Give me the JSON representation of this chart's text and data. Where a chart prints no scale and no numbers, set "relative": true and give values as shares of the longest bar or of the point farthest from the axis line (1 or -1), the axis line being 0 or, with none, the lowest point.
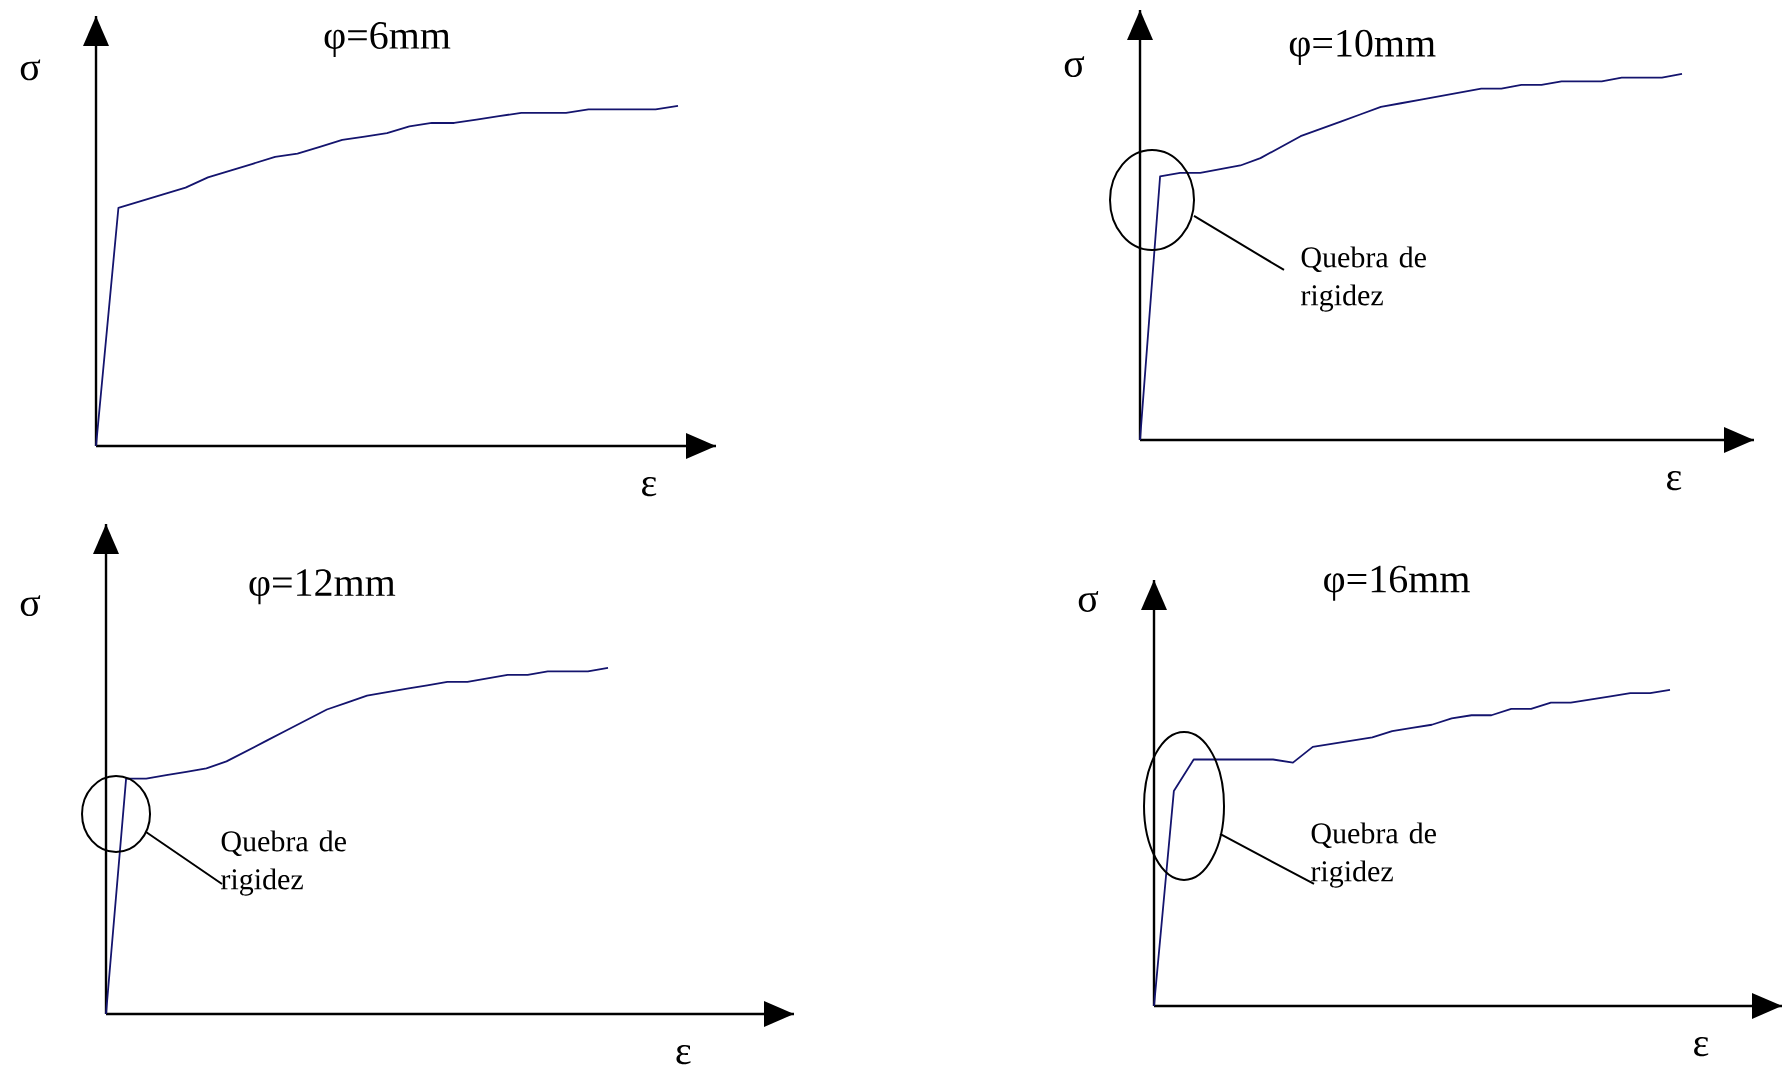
{
  "chart_data": [
    {
      "type": "line",
      "title": "φ=6mm",
      "xlabel": "ε",
      "ylabel": "σ",
      "relative": true,
      "categories": [
        null,
        null,
        null,
        null,
        null,
        null,
        null,
        null,
        null,
        null,
        null,
        null,
        null,
        null,
        null,
        null,
        null,
        null,
        null,
        null,
        null,
        null,
        null,
        null,
        null,
        null,
        null
      ],
      "series": [
        {
          "color": "#14146e",
          "values": [
            0,
            0.7,
            0.72,
            0.74,
            0.76,
            0.79,
            0.81,
            0.83,
            0.85,
            0.86,
            0.88,
            0.9,
            0.91,
            0.92,
            0.94,
            0.95,
            0.95,
            0.96,
            0.97,
            0.98,
            0.98,
            0.98,
            0.99,
            0.99,
            0.99,
            0.99,
            1.0
          ]
        }
      ]
    },
    {
      "type": "line",
      "title": "φ=10mm",
      "xlabel": "ε",
      "ylabel": "σ",
      "relative": true,
      "annotations": [
        "Quebra de rigidez"
      ],
      "categories": [
        null,
        null,
        null,
        null,
        null,
        null,
        null,
        null,
        null,
        null,
        null,
        null,
        null,
        null,
        null,
        null,
        null,
        null,
        null,
        null,
        null,
        null,
        null,
        null,
        null,
        null,
        null,
        null
      ],
      "series": [
        {
          "color": "#14146e",
          "values": [
            0,
            0.72,
            0.73,
            0.73,
            0.74,
            0.75,
            0.77,
            0.8,
            0.83,
            0.85,
            0.87,
            0.89,
            0.91,
            0.92,
            0.93,
            0.94,
            0.95,
            0.96,
            0.96,
            0.97,
            0.97,
            0.98,
            0.98,
            0.98,
            0.99,
            0.99,
            0.99,
            1.0
          ]
        }
      ]
    },
    {
      "type": "line",
      "title": "φ=12mm",
      "xlabel": "ε",
      "ylabel": "σ",
      "relative": true,
      "annotations": [
        "Quebra de rigidez"
      ],
      "categories": [
        null,
        null,
        null,
        null,
        null,
        null,
        null,
        null,
        null,
        null,
        null,
        null,
        null,
        null,
        null,
        null,
        null,
        null,
        null,
        null,
        null,
        null,
        null,
        null,
        null,
        null
      ],
      "series": [
        {
          "color": "#14146e",
          "values": [
            0,
            0.68,
            0.68,
            0.69,
            0.7,
            0.71,
            0.73,
            0.76,
            0.79,
            0.82,
            0.85,
            0.88,
            0.9,
            0.92,
            0.93,
            0.94,
            0.95,
            0.96,
            0.96,
            0.97,
            0.98,
            0.98,
            0.99,
            0.99,
            0.99,
            1.0
          ]
        }
      ]
    },
    {
      "type": "line",
      "title": "φ=16mm",
      "xlabel": "ε",
      "ylabel": "σ",
      "relative": true,
      "annotations": [
        "Quebra de rigidez"
      ],
      "categories": [
        null,
        null,
        null,
        null,
        null,
        null,
        null,
        null,
        null,
        null,
        null,
        null,
        null,
        null,
        null,
        null,
        null,
        null,
        null,
        null,
        null,
        null,
        null,
        null,
        null,
        null,
        null
      ],
      "series": [
        {
          "color": "#14146e",
          "values": [
            0,
            0.68,
            0.78,
            0.78,
            0.78,
            0.78,
            0.78,
            0.77,
            0.82,
            0.83,
            0.84,
            0.85,
            0.87,
            0.88,
            0.89,
            0.91,
            0.92,
            0.92,
            0.94,
            0.94,
            0.96,
            0.96,
            0.97,
            0.98,
            0.99,
            0.99,
            1.0
          ]
        }
      ]
    }
  ]
}
